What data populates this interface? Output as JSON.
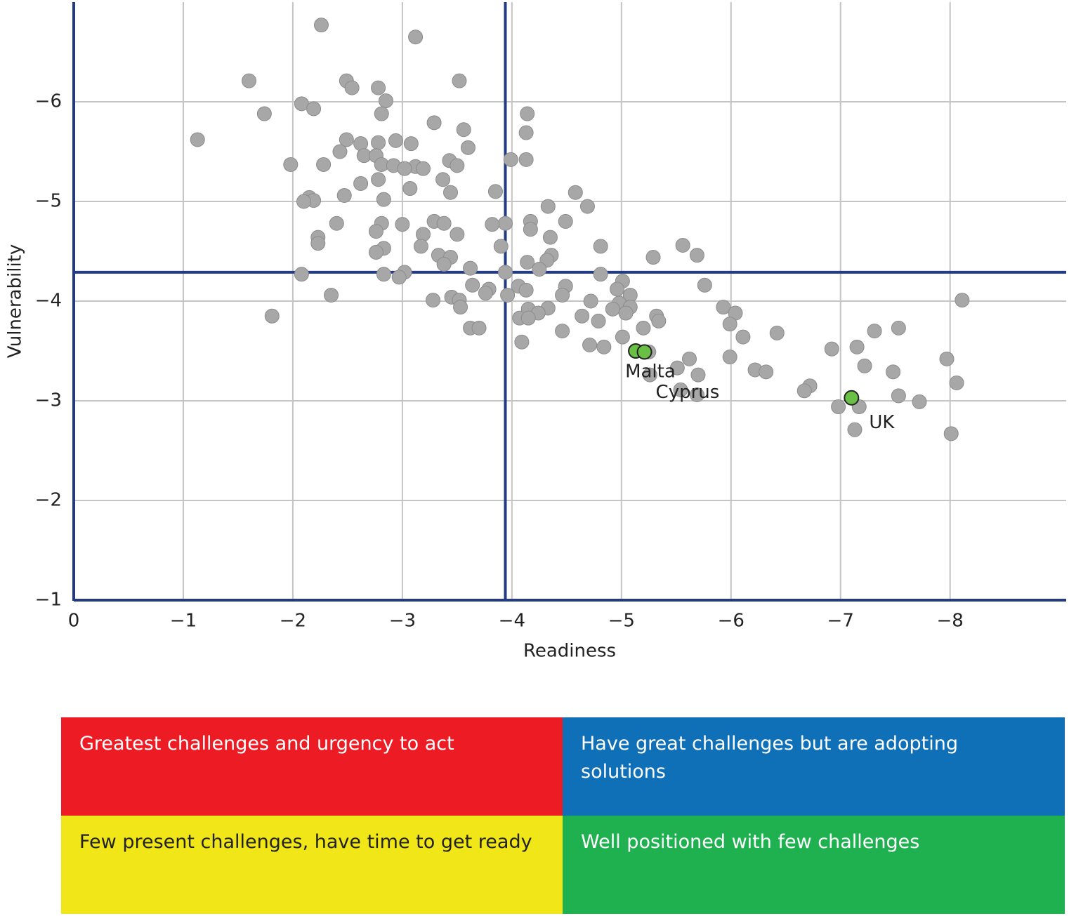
{
  "chart_data": {
    "type": "scatter",
    "x_label": "Readiness",
    "y_label": "Vulnerability",
    "xlim": [
      0,
      -9.06
    ],
    "ylim": [
      -1,
      -7.0
    ],
    "xticks": [
      0,
      {
        "value": -1,
        "label": "−1"
      },
      {
        "value": -2,
        "label": "−2"
      },
      {
        "value": -3,
        "label": "−3"
      },
      {
        "value": -4,
        "label": "−4"
      },
      {
        "value": -5,
        "label": "−5"
      },
      {
        "value": -6,
        "label": "−6"
      },
      {
        "value": -7,
        "label": "−7"
      },
      {
        "value": -8,
        "label": "−8"
      }
    ],
    "yticks": [
      {
        "value": -1,
        "label": "−1"
      },
      {
        "value": -2,
        "label": "−2"
      },
      {
        "value": -3,
        "label": "−3"
      },
      {
        "value": -4,
        "label": "−4"
      },
      {
        "value": -5,
        "label": "−5"
      },
      {
        "value": -6,
        "label": "−6"
      }
    ],
    "grid": true,
    "reference_x": -3.94,
    "reference_y": -4.29,
    "reference_color": "#233a85",
    "points": {
      "color": "#a7a7a7",
      "x": [
        -2.26,
        -3.12,
        -1.6,
        -2.49,
        -2.54,
        -3.52,
        -2.78,
        -2.85,
        -2.08,
        -2.19,
        -1.74,
        -2.81,
        -4.14,
        -3.29,
        -3.56,
        -4.13,
        -1.13,
        -2.49,
        -2.62,
        -2.94,
        -3.08,
        -2.78,
        -3.6,
        -2.43,
        -2.65,
        -2.76,
        -3.99,
        -4.13,
        -3.43,
        -1.98,
        -2.28,
        -2.81,
        -2.92,
        -3.12,
        -3.02,
        -3.19,
        -3.5,
        -3.37,
        -2.78,
        -2.62,
        -3.07,
        -3.85,
        -3.44,
        -2.47,
        -4.58,
        -2.15,
        -2.19,
        -2.1,
        -2.83,
        -4.33,
        -4.69,
        -4.17,
        -4.49,
        -3.0,
        -3.29,
        -3.94,
        -3.82,
        -2.4,
        -2.81,
        -3.38,
        -4.17,
        -2.76,
        -3.19,
        -3.5,
        -2.23,
        -4.35,
        -2.23,
        -5.56,
        -3.17,
        -3.9,
        -4.81,
        -2.83,
        -2.76,
        -5.69,
        -4.36,
        -3.33,
        -5.29,
        -3.44,
        -4.32,
        -4.14,
        -3.38,
        -3.62,
        -4.25,
        -3.94,
        -2.08,
        -2.83,
        -3.02,
        -4.81,
        -2.97,
        -5.01,
        -5.76,
        -3.64,
        -4.49,
        -4.06,
        -4.13,
        -3.79,
        -4.96,
        -3.76,
        -2.35,
        -3.96,
        -4.46,
        -5.08,
        -3.28,
        -3.45,
        -3.52,
        -4.72,
        -4.98,
        -8.11,
        -3.53,
        -5.08,
        -4.15,
        -4.33,
        -4.92,
        -5.93,
        -6.04,
        -5.04,
        -4.24,
        -1.81,
        -4.07,
        -4.15,
        -5.32,
        -4.64,
        -5.34,
        -4.79,
        -5.99,
        -3.62,
        -3.7,
        -5.2,
        -7.53,
        -7.31,
        -4.46,
        -6.42,
        -6.11,
        -5.01,
        -4.09,
        -4.71,
        -4.84,
        -7.15,
        -6.92,
        -5.25,
        -5.99,
        -5.62,
        -7.97,
        -7.22,
        -5.51,
        -6.22,
        -6.32,
        -7.48,
        -5.26,
        -5.7,
        -8.06,
        -6.72,
        -5.54,
        -6.67,
        -5.69,
        -7.53,
        -7.72,
        -6.98,
        -7.17,
        -7.13,
        -8.01
      ],
      "y": [
        -6.77,
        -6.65,
        -6.21,
        -6.21,
        -6.14,
        -6.21,
        -6.14,
        -6.01,
        -5.98,
        -5.93,
        -5.88,
        -5.88,
        -5.88,
        -5.79,
        -5.72,
        -5.69,
        -5.62,
        -5.62,
        -5.58,
        -5.61,
        -5.58,
        -5.59,
        -5.54,
        -5.5,
        -5.46,
        -5.46,
        -5.42,
        -5.42,
        -5.41,
        -5.37,
        -5.37,
        -5.37,
        -5.36,
        -5.35,
        -5.33,
        -5.33,
        -5.36,
        -5.22,
        -5.22,
        -5.18,
        -5.13,
        -5.1,
        -5.09,
        -5.06,
        -5.09,
        -5.04,
        -5.01,
        -5.0,
        -5.02,
        -4.95,
        -4.95,
        -4.8,
        -4.8,
        -4.77,
        -4.8,
        -4.78,
        -4.77,
        -4.78,
        -4.78,
        -4.78,
        -4.72,
        -4.7,
        -4.67,
        -4.67,
        -4.64,
        -4.64,
        -4.58,
        -4.56,
        -4.55,
        -4.55,
        -4.55,
        -4.53,
        -4.49,
        -4.46,
        -4.46,
        -4.46,
        -4.44,
        -4.44,
        -4.41,
        -4.39,
        -4.37,
        -4.33,
        -4.32,
        -4.29,
        -4.27,
        -4.27,
        -4.29,
        -4.27,
        -4.24,
        -4.2,
        -4.16,
        -4.16,
        -4.15,
        -4.15,
        -4.11,
        -4.12,
        -4.12,
        -4.08,
        -4.06,
        -4.06,
        -4.06,
        -4.06,
        -4.01,
        -4.04,
        -4.01,
        -4.0,
        -3.98,
        -4.01,
        -3.94,
        -3.94,
        -3.92,
        -3.93,
        -3.92,
        -3.94,
        -3.88,
        -3.88,
        -3.88,
        -3.85,
        -3.83,
        -3.83,
        -3.85,
        -3.85,
        -3.8,
        -3.8,
        -3.77,
        -3.73,
        -3.73,
        -3.73,
        -3.73,
        -3.7,
        -3.7,
        -3.68,
        -3.64,
        -3.64,
        -3.59,
        -3.56,
        -3.54,
        -3.54,
        -3.52,
        -3.49,
        -3.44,
        -3.42,
        -3.42,
        -3.35,
        -3.33,
        -3.31,
        -3.29,
        -3.29,
        -3.26,
        -3.26,
        -3.18,
        -3.15,
        -3.11,
        -3.1,
        -3.06,
        -3.05,
        -2.99,
        -2.94,
        -2.94,
        -2.71,
        -2.67
      ]
    },
    "highlight_color": "#6abf45",
    "highlights": [
      {
        "label": "Malta",
        "x": -5.13,
        "y": -3.5
      },
      {
        "label": "Cyprus",
        "x": -5.21,
        "y": -3.49
      },
      {
        "label": "UK",
        "x": -7.1,
        "y": -3.03
      }
    ]
  },
  "quadrant_key": [
    {
      "label": "Greatest challenges and urgency to act",
      "color": "#ed1c24"
    },
    {
      "label": "Have great challenges but are adopting solutions",
      "color": "#0f6fb7"
    },
    {
      "label": "Few present challenges, have time to get ready",
      "color": "#f0e618"
    },
    {
      "label": "Well positioned with few challenges",
      "color": "#1fb150"
    }
  ]
}
